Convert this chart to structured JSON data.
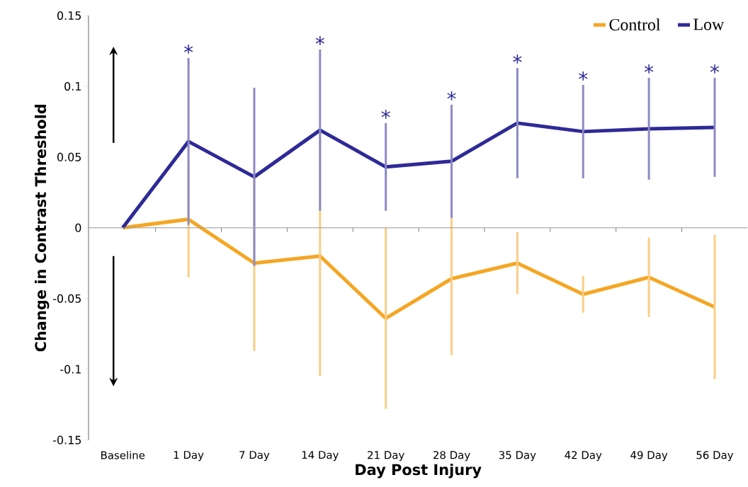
{
  "chart_data": {
    "type": "line",
    "xlabel": "Day Post Injury",
    "ylabel": "Change in Contrast Threshold",
    "categories": [
      "Baseline",
      "1 Day",
      "7 Day",
      "14 Day",
      "21 Day",
      "28 Day",
      "35 Day",
      "42 Day",
      "49 Day",
      "56 Day"
    ],
    "series": [
      {
        "name": "Control",
        "color": "#f5a623",
        "values": [
          0,
          0.006,
          -0.025,
          -0.02,
          -0.064,
          -0.036,
          -0.025,
          -0.047,
          -0.035,
          -0.056
        ],
        "errors": [
          null,
          0.041,
          0.062,
          0.085,
          0.064,
          0.054,
          0.022,
          0.013,
          0.028,
          0.051
        ]
      },
      {
        "name": "Low",
        "color": "#2e2a96",
        "values": [
          0,
          0.061,
          0.036,
          0.069,
          0.043,
          0.047,
          0.074,
          0.068,
          0.07,
          0.071
        ],
        "errors": [
          null,
          0.059,
          0.063,
          0.057,
          0.031,
          0.04,
          0.039,
          0.033,
          0.036,
          0.035
        ]
      }
    ],
    "ylim": [
      -0.15,
      0.15
    ],
    "yticks": [
      -0.15,
      -0.1,
      -0.05,
      0,
      0.05,
      0.1,
      0.15
    ],
    "ref_lines": [
      {
        "axis": "y",
        "value": 0,
        "color": "#a0a0a0"
      }
    ],
    "legend": "top right",
    "grid": false,
    "marker": "none",
    "line_style": "solid",
    "annotations": [
      {
        "text": "*",
        "x": "1 Day",
        "y": 0.12
      },
      {
        "text": "*",
        "x": "14 Day",
        "y": 0.126
      },
      {
        "text": "*",
        "x": "21 Day",
        "y": 0.074
      },
      {
        "text": "*",
        "x": "28 Day",
        "y": 0.087
      },
      {
        "text": "*",
        "x": "35 Day",
        "y": 0.113
      },
      {
        "text": "*",
        "x": "42 Day",
        "y": 0.101
      },
      {
        "text": "*",
        "x": "49 Day",
        "y": 0.106
      },
      {
        "text": "*",
        "x": "56 Day",
        "y": 0.106
      }
    ]
  }
}
